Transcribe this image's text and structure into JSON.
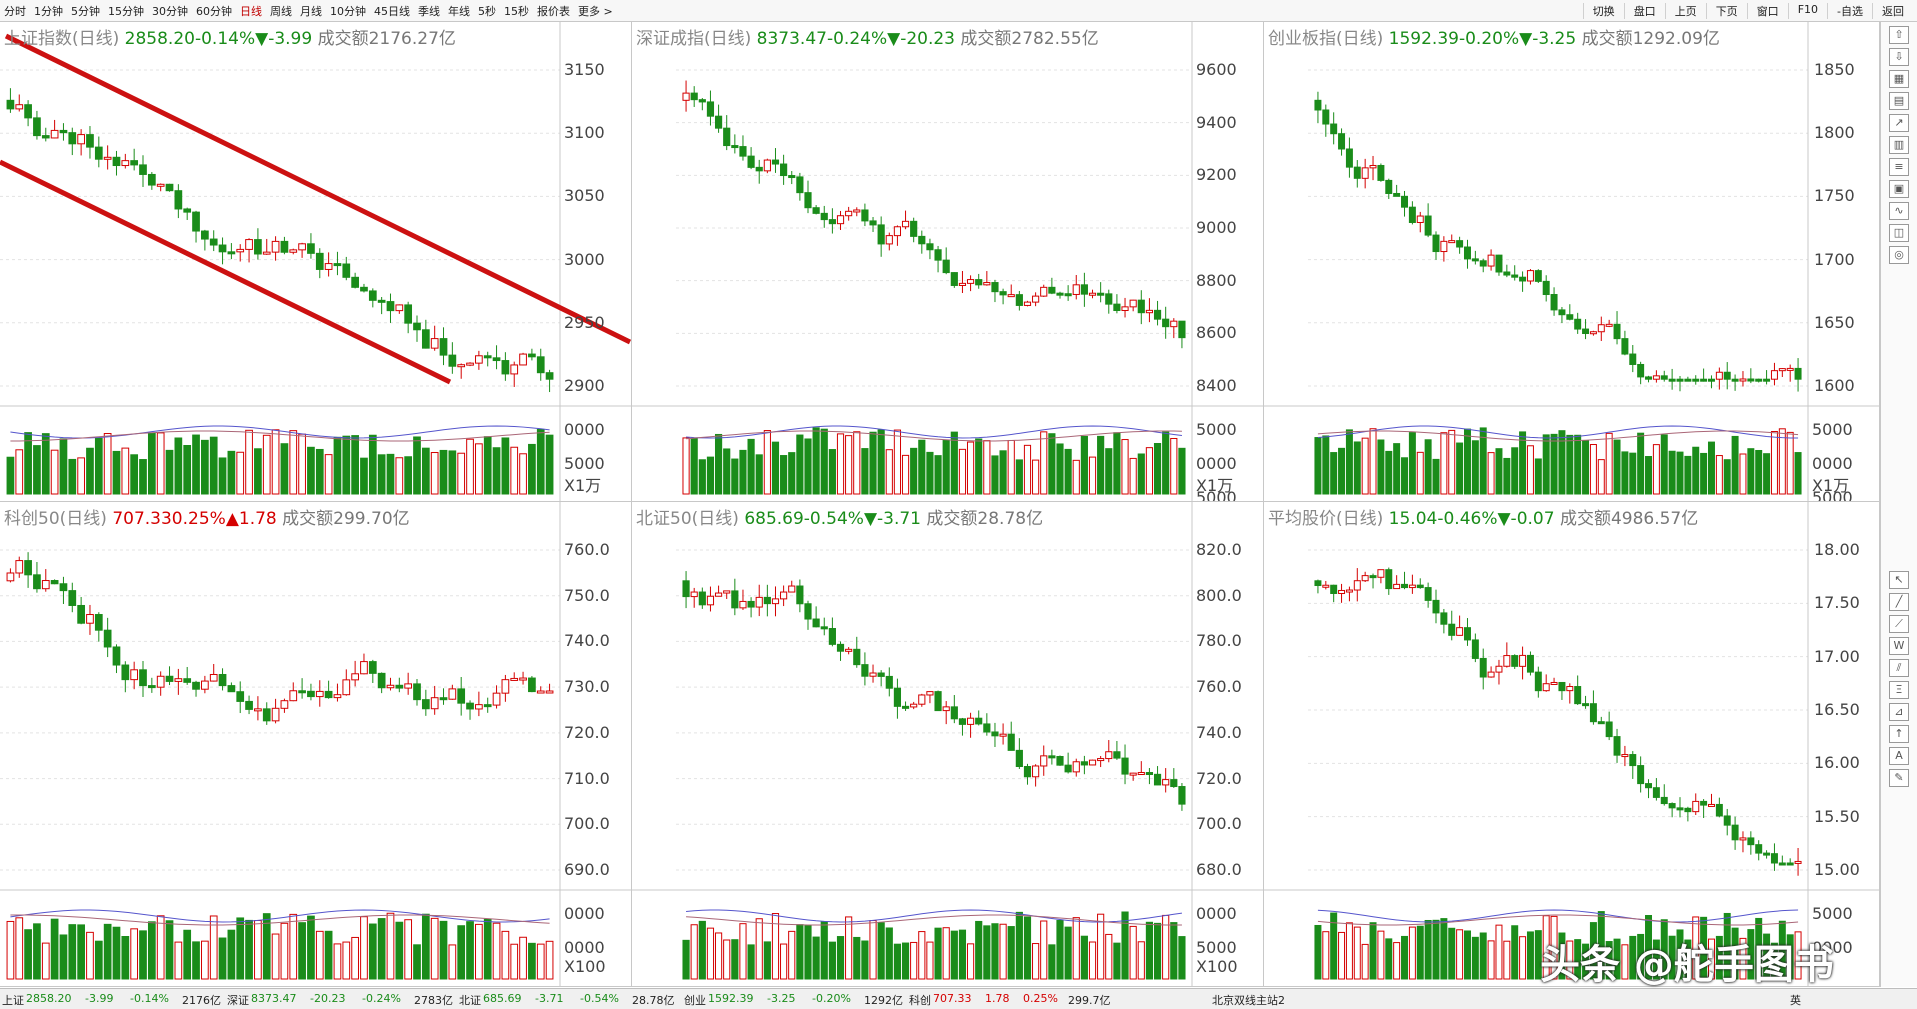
{
  "toolbar": {
    "periods": [
      "分时",
      "1分钟",
      "5分钟",
      "15分钟",
      "30分钟",
      "60分钟",
      "日线",
      "周线",
      "月线",
      "10分钟",
      "45日线",
      "季线",
      "年线",
      "5秒",
      "15秒",
      "报价表",
      "更多 >"
    ],
    "active_period": "日线",
    "right_buttons": [
      "切换",
      "盘口",
      "上页",
      "下页",
      "窗口",
      "F10",
      "-自选",
      "返回"
    ]
  },
  "panels": [
    {
      "name": "上证指数",
      "period": "(日线)",
      "price": "2858.20",
      "pct": "-0.14%",
      "chg": "▼-3.99",
      "amount_label": "成交额",
      "amount": "2176.27亿",
      "axis": [
        "3150",
        "3100",
        "3050",
        "3000",
        "2950",
        "2900"
      ],
      "vol_axis": [
        "0000",
        "5000"
      ],
      "vol_unit": "X1万",
      "axis_side": "right",
      "trend": "down",
      "seed": 11
    },
    {
      "name": "深证成指",
      "period": "(日线)",
      "price": "8373.47",
      "pct": "-0.24%",
      "chg": "▼-20.23",
      "amount_label": "成交额",
      "amount": "2782.55亿",
      "axis": [
        "9600",
        "9400",
        "9200",
        "9000",
        "8800",
        "8600",
        "8400"
      ],
      "vol_axis": [
        "5000",
        "0000",
        "5000"
      ],
      "vol_unit": "X1万",
      "axis_side": "right",
      "trend": "down",
      "seed": 23
    },
    {
      "name": "创业板指",
      "period": "(日线)",
      "price": "1592.39",
      "pct": "-0.20%",
      "chg": "▼-3.25",
      "amount_label": "成交额",
      "amount": "1292.09亿",
      "axis": [
        "1850",
        "1800",
        "1750",
        "1700",
        "1650",
        "1600"
      ],
      "vol_axis": [
        "5000",
        "0000",
        "5000"
      ],
      "vol_unit": "X1万",
      "axis_side": "right",
      "trend": "down",
      "seed": 37
    },
    {
      "name": "科创50",
      "period": "(日线)",
      "price": "707.33",
      "pct": "0.25%",
      "chg": "▲1.78",
      "amount_label": "成交额",
      "amount": "299.70亿",
      "axis": [
        "760.0",
        "750.0",
        "740.0",
        "730.0",
        "720.0",
        "710.0",
        "700.0",
        "690.0"
      ],
      "vol_axis": [
        "0000",
        "0000"
      ],
      "vol_unit": "X100",
      "axis_side": "right",
      "trend": "flat",
      "seed": 51
    },
    {
      "name": "北证50",
      "period": "(日线)",
      "price": "685.69",
      "pct": "-0.54%",
      "chg": "▼-3.71",
      "amount_label": "成交额",
      "amount": "28.78亿",
      "axis": [
        "820.0",
        "800.0",
        "780.0",
        "760.0",
        "740.0",
        "720.0",
        "700.0",
        "680.0"
      ],
      "vol_axis": [
        "0000",
        "5000"
      ],
      "vol_unit": "X100",
      "axis_side": "right",
      "trend": "down",
      "seed": 67
    },
    {
      "name": "平均股价",
      "period": "(日线)",
      "price": "15.04",
      "pct": "-0.46%",
      "chg": "▼-0.07",
      "amount_label": "成交额",
      "amount": "4986.57亿",
      "axis": [
        "18.00",
        "17.50",
        "17.00",
        "16.50",
        "16.00",
        "15.50",
        "15.00"
      ],
      "vol_axis": [
        "5000",
        "0000"
      ],
      "vol_unit": "",
      "axis_side": "right",
      "trend": "down",
      "seed": 83
    }
  ],
  "status": {
    "items": [
      {
        "t": "上证",
        "c": "#222"
      },
      {
        "t": "2858.20",
        "c": "#1a8c1a"
      },
      {
        "t": "-3.99",
        "c": "#1a8c1a"
      },
      {
        "t": "-0.14%",
        "c": "#1a8c1a"
      },
      {
        "t": "2176亿",
        "c": "#222"
      },
      {
        "t": "深证",
        "c": "#222"
      },
      {
        "t": "8373.47",
        "c": "#1a8c1a"
      },
      {
        "t": "-20.23",
        "c": "#1a8c1a"
      },
      {
        "t": "-0.24%",
        "c": "#1a8c1a"
      },
      {
        "t": "2783亿",
        "c": "#222"
      },
      {
        "t": "北证",
        "c": "#222"
      },
      {
        "t": "685.69",
        "c": "#1a8c1a"
      },
      {
        "t": "-3.71",
        "c": "#1a8c1a"
      },
      {
        "t": "-0.54%",
        "c": "#1a8c1a"
      },
      {
        "t": "28.78亿",
        "c": "#222"
      },
      {
        "t": "创业",
        "c": "#222"
      },
      {
        "t": "1592.39",
        "c": "#1a8c1a"
      },
      {
        "t": "-3.25",
        "c": "#1a8c1a"
      },
      {
        "t": "-0.20%",
        "c": "#1a8c1a"
      },
      {
        "t": "1292亿",
        "c": "#222"
      },
      {
        "t": "科创",
        "c": "#222"
      },
      {
        "t": "707.33",
        "c": "#d40000"
      },
      {
        "t": "1.78",
        "c": "#d40000"
      },
      {
        "t": "0.25%",
        "c": "#d40000"
      },
      {
        "t": "299.7亿",
        "c": "#222"
      }
    ],
    "server": "北京双线主站2"
  },
  "watermark": "头条 @舵手图书",
  "ime": "英",
  "colors": {
    "up": "#d40000",
    "down": "#1a8c1a",
    "trendline": "#cc1111"
  }
}
